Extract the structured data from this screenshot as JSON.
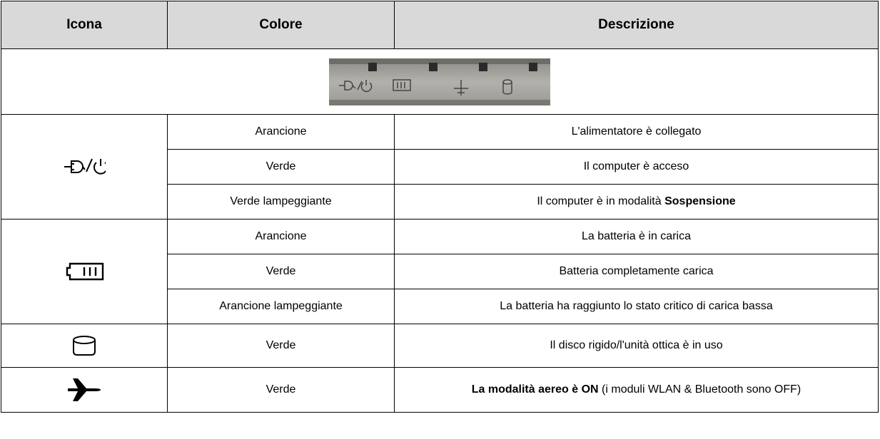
{
  "header": {
    "icon": "Icona",
    "color": "Colore",
    "description": "Descrizione"
  },
  "groups": [
    {
      "rows": [
        {
          "color": "Arancione",
          "description": [
            {
              "text": "L'alimentatore è collegato"
            }
          ]
        },
        {
          "color": "Verde",
          "description": [
            {
              "text": "Il computer è acceso"
            }
          ]
        },
        {
          "color": "Verde lampeggiante",
          "description": [
            {
              "text": "Il computer è in modalità"
            },
            {
              "bold": "Sospensione"
            }
          ]
        }
      ]
    },
    {
      "rows": [
        {
          "color": "Arancione",
          "description": [
            {
              "text": "La batteria è in carica"
            }
          ]
        },
        {
          "color": "Verde",
          "description": [
            {
              "text": "Batteria completamente carica"
            }
          ]
        },
        {
          "color": "Arancione lampeggiante",
          "description": [
            {
              "text": "La batteria ha raggiunto lo stato critico di carica bassa"
            }
          ]
        }
      ]
    },
    {
      "rows": [
        {
          "color": "Verde",
          "description": [
            {
              "text": "Il disco rigido/l'unità ottica è in uso"
            }
          ]
        }
      ]
    },
    {
      "rows": [
        {
          "color": "Verde",
          "description": [
            {
              "bold": "La modalità aereo è ON"
            },
            {
              "text": "(i moduli WLAN & Bluetooth sono OFF)"
            }
          ]
        }
      ]
    }
  ]
}
